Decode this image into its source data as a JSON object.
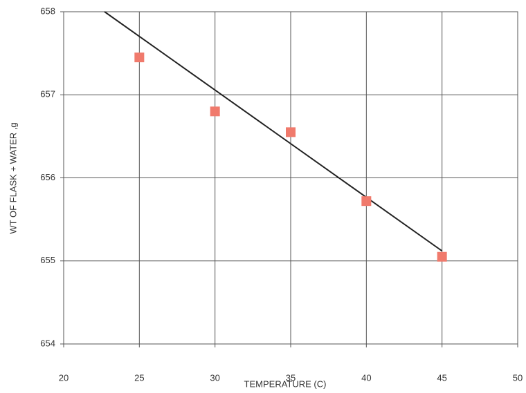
{
  "chart_data": {
    "type": "scatter",
    "xlabel": "TEMPERATURE (C)",
    "ylabel": "WT OF FLASK + WATER ,g",
    "series": [
      {
        "x": [
          25,
          30,
          35,
          40,
          45
        ],
        "values": [
          657.45,
          656.8,
          656.55,
          655.72,
          655.05
        ],
        "color": "#f07a6c"
      }
    ],
    "trendline": {
      "x": [
        22.7,
        45
      ],
      "values": [
        658,
        655.12
      ],
      "color": "#222"
    },
    "xlim": [
      20,
      50
    ],
    "xticks": [
      20,
      25,
      30,
      35,
      40,
      45,
      50
    ],
    "ylim": [
      654,
      658
    ],
    "yticks": [
      654,
      655,
      656,
      657,
      658
    ],
    "grid": true
  }
}
